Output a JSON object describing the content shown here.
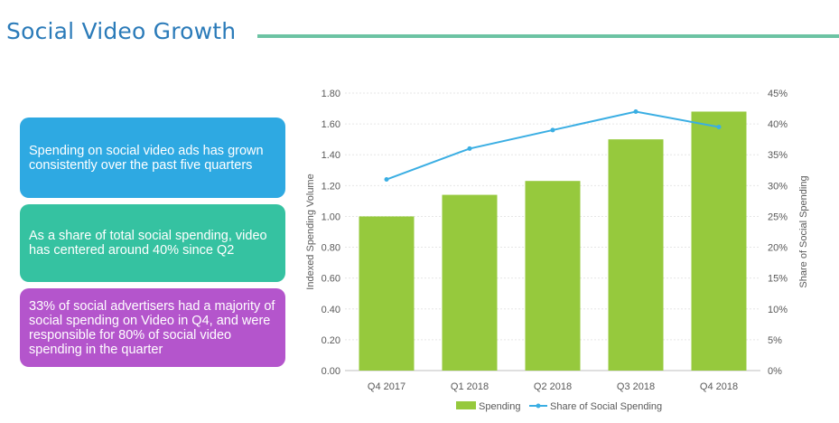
{
  "page": {
    "title": "Social Video Growth",
    "colors": {
      "title": "#2b7bb9",
      "rule": "#6cc3a3"
    }
  },
  "callouts": [
    {
      "text": "Spending on social video ads has grown consistently over the past five quarters",
      "color": "#2ea9e2"
    },
    {
      "text": "As a share of total social spending, video has centered around 40% since Q2",
      "color": "#35c2a1"
    },
    {
      "text": "33% of social advertisers had a majority of social spending on Video in Q4, and were responsible for 80% of social video spending in the quarter",
      "color": "#b455cc"
    }
  ],
  "chart_data": {
    "type": "bar",
    "title": "",
    "categories": [
      "Q4 2017",
      "Q1 2018",
      "Q2 2018",
      "Q3 2018",
      "Q4 2018"
    ],
    "ylabel": "Indexed Spending Volume",
    "y2label": "Share of Social Spending",
    "ylim": [
      0,
      1.8
    ],
    "y2lim": [
      0,
      45
    ],
    "yticks": [
      "0.00",
      "0.20",
      "0.40",
      "0.60",
      "0.80",
      "1.00",
      "1.20",
      "1.40",
      "1.60",
      "1.80"
    ],
    "y2ticks": [
      "0%",
      "5%",
      "10%",
      "15%",
      "20%",
      "25%",
      "30%",
      "35%",
      "40%",
      "45%"
    ],
    "grid": true,
    "legend": "bottom",
    "series": [
      {
        "name": "Spending",
        "type": "bar",
        "axis": "left",
        "color": "#96c93d",
        "values": [
          1.0,
          1.14,
          1.23,
          1.5,
          1.68
        ]
      },
      {
        "name": "Share of Social Spending",
        "type": "line",
        "axis": "right",
        "color": "#3aaee3",
        "values": [
          31,
          36,
          39,
          42,
          39.5
        ]
      }
    ]
  }
}
